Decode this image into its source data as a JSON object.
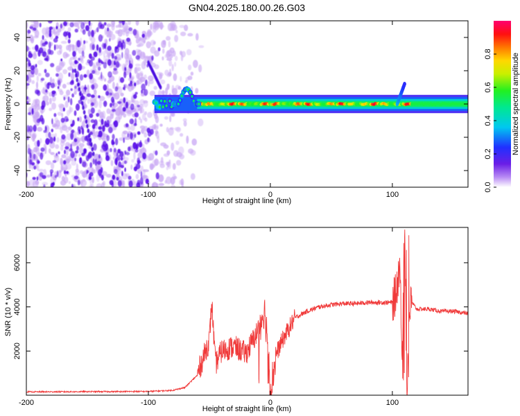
{
  "title": "GN04.2025.180.00.26.G03",
  "colors": {
    "snr_line": "#f03a3a",
    "frame": "#000000",
    "speckle_dark": "#5a10e8",
    "speckle_light": "#c9a8f4"
  },
  "chart_data": [
    {
      "type": "heatmap",
      "xlabel": "Height of straight line (km)",
      "ylabel": "Frequency (Hz)",
      "xlim": [
        -200,
        162
      ],
      "ylim": [
        -50,
        50
      ],
      "xticks": [
        -200,
        -100,
        0,
        100
      ],
      "yticks": [
        -40,
        -20,
        0,
        20,
        40
      ],
      "grid": false,
      "colormap": "rainbow (purple-blue-cyan-green-yellow-orange-red-magenta)",
      "colorbar": {
        "label": "Normalized spectral amplitude",
        "range": [
          0,
          1
        ],
        "ticks": [
          "0.0",
          "0.2",
          "0.4",
          "0.6",
          "0.8"
        ]
      },
      "features": {
        "noise_region_x": [
          -200,
          -62
        ],
        "carrier_start_x": -95,
        "carrier_end_x": 162,
        "carrier_frequency_hz": 0,
        "diagonal_streaks": [
          {
            "x": [
              -160,
              -145
            ],
            "y": [
              20,
              -30
            ]
          },
          {
            "x": [
              -100,
              -90
            ],
            "y": [
              25,
              10
            ]
          }
        ],
        "bump_near_x": [
          -75,
          -62
        ],
        "bump_peak_hz": 10,
        "spike_near_x": 108,
        "spike_peak_hz": 12
      }
    },
    {
      "type": "line",
      "xlabel": "Height of straight line (km)",
      "ylabel": "SNR (10 * v/v)",
      "xlim": [
        -200,
        162
      ],
      "ylim": [
        0,
        7600
      ],
      "xticks": [
        -200,
        -100,
        0,
        100
      ],
      "yticks": [
        2000,
        4000,
        6000
      ],
      "grid": false,
      "series": [
        {
          "x": [
            -200,
            -150,
            -100,
            -80,
            -70,
            -60,
            -55,
            -50,
            -48,
            -45,
            -40,
            -30,
            -20,
            -12,
            -8,
            -5,
            -2,
            0,
            5,
            10,
            15,
            20,
            30,
            40,
            50,
            60,
            70,
            80,
            90,
            100,
            103,
            106,
            108,
            110,
            112,
            114,
            116,
            120,
            130,
            140,
            150,
            162
          ],
          "y": [
            150,
            160,
            170,
            220,
            350,
            900,
            1700,
            2500,
            4200,
            1400,
            2000,
            2200,
            1900,
            2700,
            3300,
            3900,
            2500,
            200,
            1900,
            2500,
            3000,
            3500,
            3800,
            4000,
            4100,
            4150,
            4150,
            4200,
            4200,
            4200,
            4600,
            6000,
            2200,
            7400,
            400,
            3900,
            4200,
            3900,
            3900,
            3800,
            3800,
            3700
          ]
        }
      ]
    }
  ]
}
